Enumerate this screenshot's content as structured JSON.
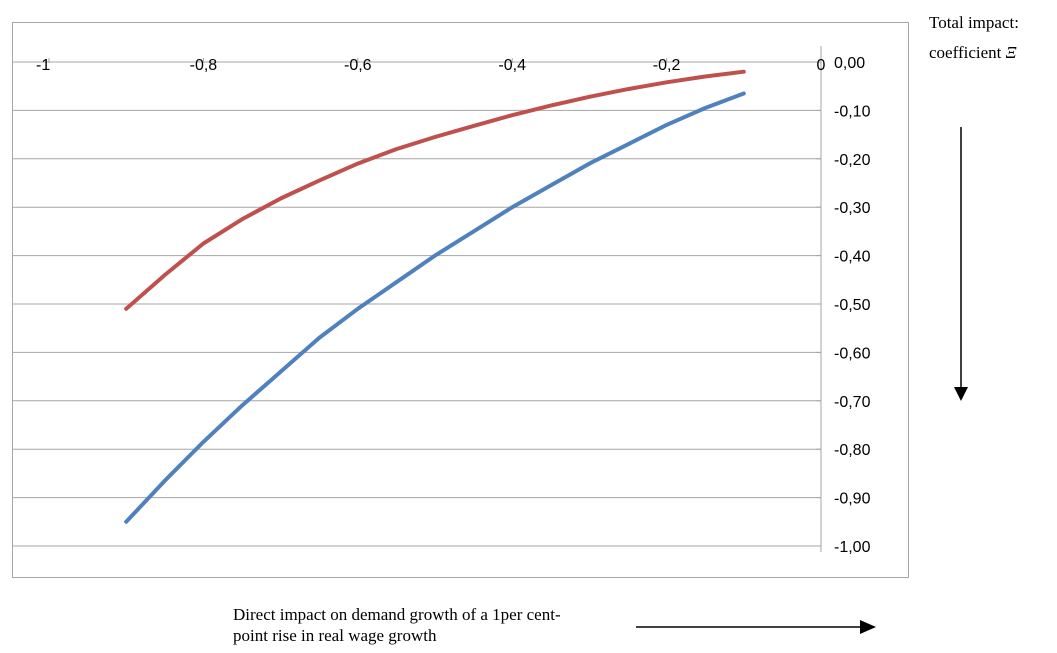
{
  "side_label": {
    "line1": "Total impact:",
    "line2_text": "coefficient ",
    "line2_symbol": "Ξ"
  },
  "bottom_label": "Direct impact on demand growth of a 1per cent-point rise in real wage  growth",
  "colors": {
    "red_series": "#c0504d",
    "blue_series": "#4f81bd",
    "grid": "#a6a6a6"
  },
  "chart_data": {
    "type": "line",
    "xlim": [
      -1,
      0
    ],
    "ylim": [
      -1.0,
      0.0
    ],
    "x_ticks": [
      "-1",
      "-0,8",
      "-0,6",
      "-0,4",
      "-0,2",
      "0"
    ],
    "x_tick_values": [
      -1,
      -0.8,
      -0.6,
      -0.4,
      -0.2,
      0
    ],
    "y_ticks": [
      "0,00",
      "-0,10",
      "-0,20",
      "-0,30",
      "-0,40",
      "-0,50",
      "-0,60",
      "-0,70",
      "-0,80",
      "-0,90",
      "-1,00"
    ],
    "y_tick_values": [
      0,
      -0.1,
      -0.2,
      -0.3,
      -0.4,
      -0.5,
      -0.6,
      -0.7,
      -0.8,
      -0.9,
      -1.0
    ],
    "grid": true,
    "series": [
      {
        "color": "#c0504d",
        "x": [
          -0.9,
          -0.85,
          -0.8,
          -0.75,
          -0.7,
          -0.65,
          -0.6,
          -0.55,
          -0.5,
          -0.45,
          -0.4,
          -0.35,
          -0.3,
          -0.25,
          -0.2,
          -0.15,
          -0.1
        ],
        "y": [
          -0.51,
          -0.44,
          -0.375,
          -0.325,
          -0.282,
          -0.245,
          -0.21,
          -0.18,
          -0.155,
          -0.132,
          -0.11,
          -0.09,
          -0.072,
          -0.056,
          -0.042,
          -0.03,
          -0.02
        ]
      },
      {
        "color": "#4f81bd",
        "x": [
          -0.9,
          -0.85,
          -0.8,
          -0.75,
          -0.7,
          -0.65,
          -0.6,
          -0.55,
          -0.5,
          -0.45,
          -0.4,
          -0.35,
          -0.3,
          -0.25,
          -0.2,
          -0.15,
          -0.1
        ],
        "y": [
          -0.95,
          -0.865,
          -0.785,
          -0.71,
          -0.64,
          -0.57,
          -0.51,
          -0.455,
          -0.4,
          -0.35,
          -0.3,
          -0.255,
          -0.21,
          -0.17,
          -0.13,
          -0.095,
          -0.065
        ]
      }
    ]
  }
}
